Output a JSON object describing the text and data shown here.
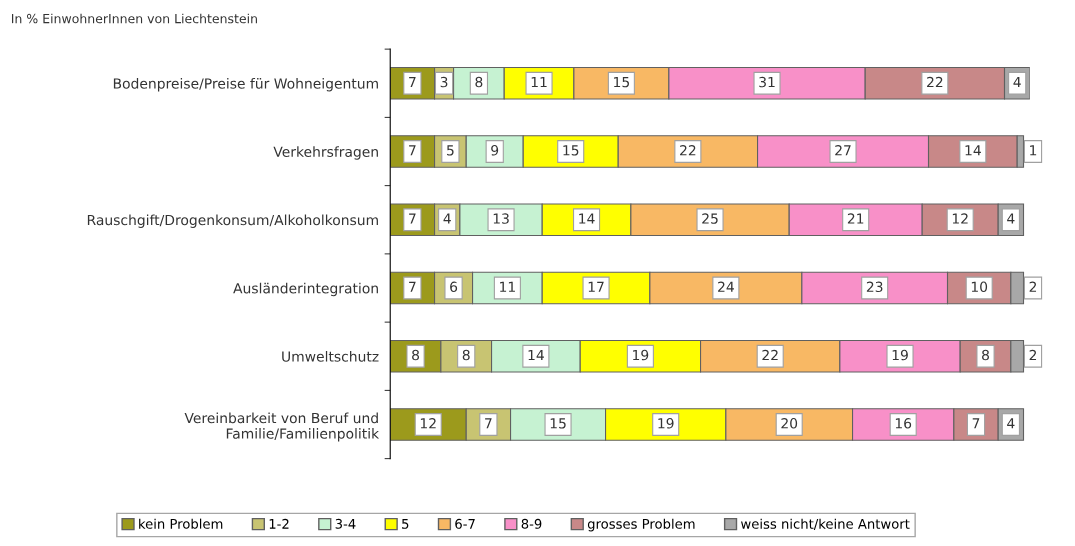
{
  "chart_data": {
    "type": "bar",
    "orientation": "horizontal",
    "stacked": true,
    "data_labels": true,
    "legend": "bottom",
    "grid": false,
    "tick_labels": "y",
    "subtitle": "In % EinwohnerInnen von Liechtenstein",
    "categories": [
      "Bodenpreise/Preise für Wohneigentum",
      "Verkehrsfragen",
      "Rauschgift/Drogenkonsum/Alkoholkonsum",
      "Ausländerintegration",
      "Umweltschutz",
      "Vereinbarkeit von Beruf und\nFamilie/Familienpolitik"
    ],
    "series": [
      {
        "name": "kein Problem",
        "color": "#9c9a1c",
        "values": [
          7,
          7,
          7,
          7,
          8,
          12
        ]
      },
      {
        "name": "1-2",
        "color": "#c8c472",
        "values": [
          3,
          5,
          4,
          6,
          8,
          7
        ]
      },
      {
        "name": "3-4",
        "color": "#c6f2d2",
        "values": [
          8,
          9,
          13,
          11,
          14,
          15
        ]
      },
      {
        "name": "5",
        "color": "#ffff00",
        "values": [
          11,
          15,
          14,
          17,
          19,
          19
        ]
      },
      {
        "name": "6-7",
        "color": "#f8b864",
        "values": [
          15,
          22,
          25,
          24,
          22,
          20
        ]
      },
      {
        "name": "8-9",
        "color": "#f890c8",
        "values": [
          31,
          27,
          21,
          23,
          19,
          16
        ]
      },
      {
        "name": "grosses Problem",
        "color": "#c88888",
        "values": [
          22,
          14,
          12,
          10,
          8,
          7
        ]
      },
      {
        "name": "weiss nicht/keine Antwort",
        "color": "#a8a8a8",
        "values": [
          4,
          1,
          4,
          2,
          2,
          4
        ]
      }
    ]
  }
}
